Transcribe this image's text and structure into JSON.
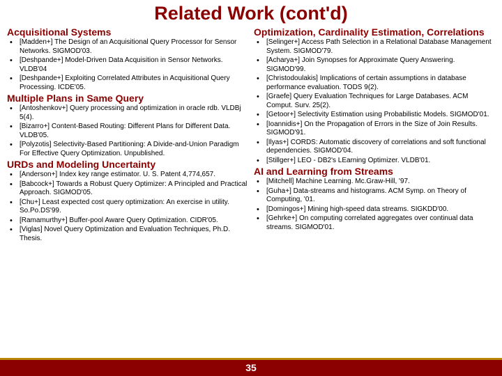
{
  "title": "Related Work (cont'd)",
  "title_color": "#8b0000",
  "section_color": "#8b0000",
  "body_color": "#000000",
  "footer_bg": "#8b0000",
  "footer_border": "#b8860b",
  "page_number": "35",
  "left": {
    "sections": [
      {
        "heading": "Acquisitional Systems",
        "items": [
          "[Madden+] The Design of an Acquisitional Query Processor for Sensor Networks. SIGMOD'03.",
          "[Deshpande+] Model-Driven Data Acquisition in Sensor Networks. VLDB'04",
          "[Deshpande+] Exploiting Correlated Attributes in Acquisitional Query Processing. ICDE'05."
        ]
      },
      {
        "heading": "Multiple Plans in Same Query",
        "items": [
          "[Antoshenkov+] Query processing and optimization in oracle rdb. VLDBj 5(4).",
          "[Bizarro+] Content-Based Routing: Different Plans for Different Data. VLDB'05.",
          "[Polyzotis] Selectivity-Based Partitioning: A Divide-and-Union Paradigm For Effective Query Optimization. Unpublished."
        ]
      },
      {
        "heading": "URDs and Modeling Uncertainty",
        "items": [
          "[Anderson+] Index key range estimator. U. S. Patent 4,774,657.",
          "[Babcock+] Towards a Robust Query Optimizer: A Principled and Practical Approach. SIGMOD'05.",
          "[Chu+] Least expected cost query optimization: An exercise in utility. So.Po.DS'99.",
          "[Ramamurthy+] Buffer-pool Aware Query Optimization. CIDR'05.",
          "[Viglas] Novel Query Optimization and Evaluation Techniques, Ph.D. Thesis."
        ]
      }
    ]
  },
  "right": {
    "sections": [
      {
        "heading": "Optimization, Cardinality Estimation, Correlations",
        "items": [
          "[Selinger+] Access Path Selection in a Relational Database Management System. SIGMOD'79.",
          "[Acharya+] Join Synopses for Approximate Query Answering. SIGMOD'99.",
          "[Christodoulakis] Implications of certain assumptions in database performance evaluation. TODS 9(2).",
          "[Graefe] Query Evaluation Techniques for Large Databases. ACM Comput. Surv. 25(2).",
          "[Getoor+] Selectivity Estimation using Probabilistic Models. SIGMOD'01.",
          "[Ioannidis+] On the Propagation of Errors in the Size of Join Results. SIGMOD'91.",
          "[Ilyas+] CORDS: Automatic discovery of correlations and soft functional dependencies. SIGMOD'04.",
          "[Stillger+] LEO - DB2's LEarning Optimizer. VLDB'01."
        ]
      },
      {
        "heading": "AI and Learning from Streams",
        "items": [
          "[Mitchell] Machine Learning. Mc.Graw-Hill, '97.",
          "[Guha+] Data-streams and histograms. ACM Symp. on Theory of Computing, '01.",
          "[Domingos+] Mining high-speed data streams. SIGKDD'00.",
          "[Gehrke+] On computing correlated aggregates over continual data streams. SIGMOD'01."
        ]
      }
    ]
  }
}
